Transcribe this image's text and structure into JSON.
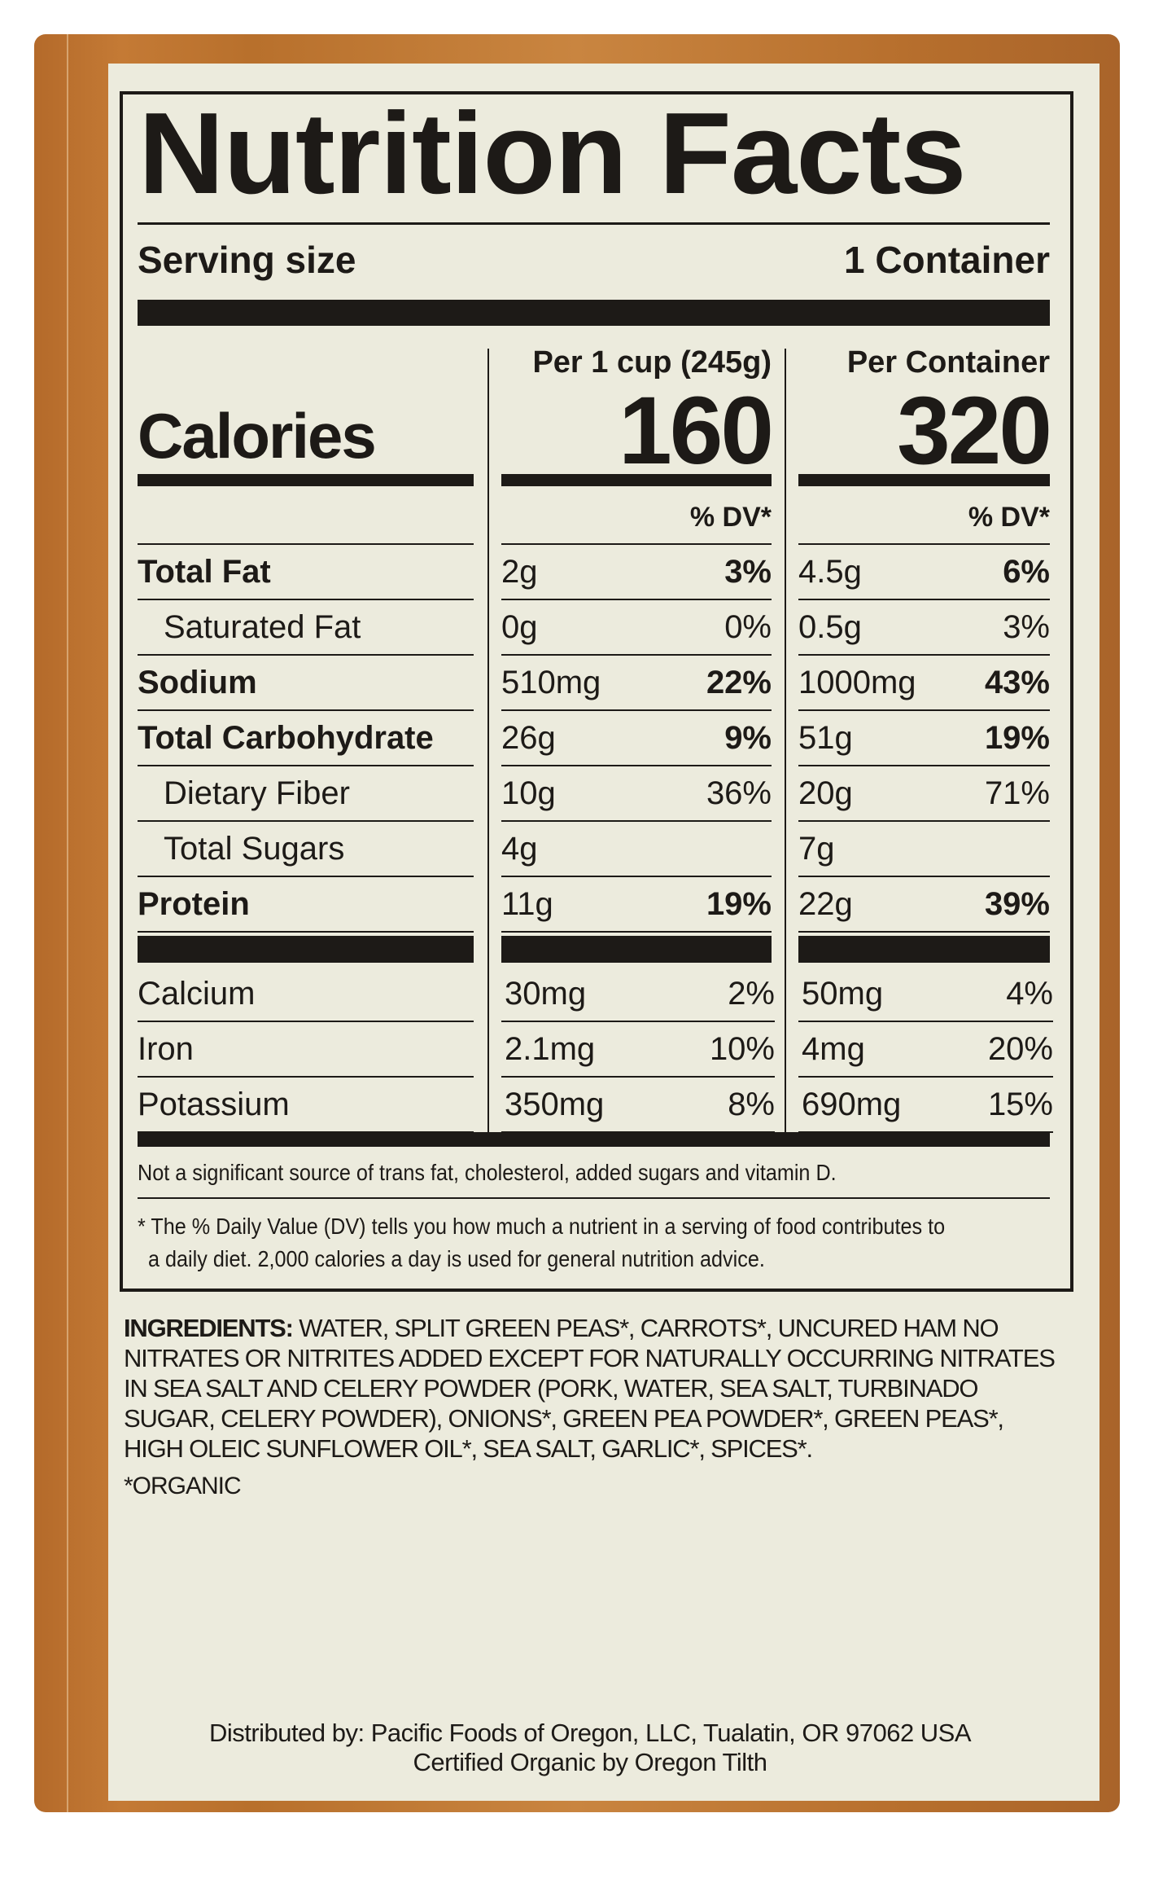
{
  "title": "Nutrition Facts",
  "serving": {
    "label": "Serving size",
    "value": "1 Container"
  },
  "columns": [
    {
      "header": "Per 1 cup (245g)",
      "calories": "160",
      "dv": "% DV*"
    },
    {
      "header": "Per Container",
      "calories": "320",
      "dv": "% DV*"
    }
  ],
  "calories_label": "Calories",
  "nutrients": [
    {
      "name": "Total Fat",
      "bold": true,
      "indent": false,
      "a": "2g",
      "a_dv": "3%",
      "b": "4.5g",
      "b_dv": "6%"
    },
    {
      "name": "Saturated Fat",
      "bold": false,
      "indent": true,
      "a": "0g",
      "a_dv": "0%",
      "b": "0.5g",
      "b_dv": "3%"
    },
    {
      "name": "Sodium",
      "bold": true,
      "indent": false,
      "a": "510mg",
      "a_dv": "22%",
      "b": "1000mg",
      "b_dv": "43%"
    },
    {
      "name": "Total Carbohydrate",
      "bold": true,
      "indent": false,
      "a": "26g",
      "a_dv": "9%",
      "b": "51g",
      "b_dv": "19%"
    },
    {
      "name": "Dietary Fiber",
      "bold": false,
      "indent": true,
      "a": "10g",
      "a_dv": "36%",
      "b": "20g",
      "b_dv": "71%"
    },
    {
      "name": "Total Sugars",
      "bold": false,
      "indent": true,
      "a": "4g",
      "a_dv": "",
      "b": "7g",
      "b_dv": ""
    },
    {
      "name": "Protein",
      "bold": true,
      "indent": false,
      "a": "11g",
      "a_dv": "19%",
      "b": "22g",
      "b_dv": "39%"
    }
  ],
  "minerals": [
    {
      "name": "Calcium",
      "a": "30mg",
      "a_dv": "2%",
      "b": "50mg",
      "b_dv": "4%"
    },
    {
      "name": "Iron",
      "a": "2.1mg",
      "a_dv": "10%",
      "b": "4mg",
      "b_dv": "20%"
    },
    {
      "name": "Potassium",
      "a": "350mg",
      "a_dv": "8%",
      "b": "690mg",
      "b_dv": "15%"
    }
  ],
  "footnote_1": "Not a significant source of trans fat, cholesterol, added sugars and vitamin D.",
  "footnote_2a": "* The % Daily Value (DV) tells you how much a nutrient in a serving of food contributes to",
  "footnote_2b": "a daily diet. 2,000 calories a day is used for general nutrition advice.",
  "ingredients_label": "INGREDIENTS:",
  "ingredients": "WATER, SPLIT GREEN PEAS*, CARROTS*, UNCURED HAM NO NITRATES OR NITRITES ADDED EXCEPT FOR NATURALLY OCCURRING NITRATES IN SEA SALT AND CELERY POWDER (PORK, WATER, SEA SALT, TURBINADO SUGAR, CELERY POWDER), ONIONS*, GREEN PEA POWDER*, GREEN PEAS*, HIGH OLEIC SUNFLOWER OIL*, SEA SALT, GARLIC*, SPICES*.",
  "organic_note": "*ORGANIC",
  "distributor": "Distributed by: Pacific Foods of Oregon, LLC, Tualatin, OR 97062 USA",
  "certification": "Certified Organic by Oregon Tilth"
}
